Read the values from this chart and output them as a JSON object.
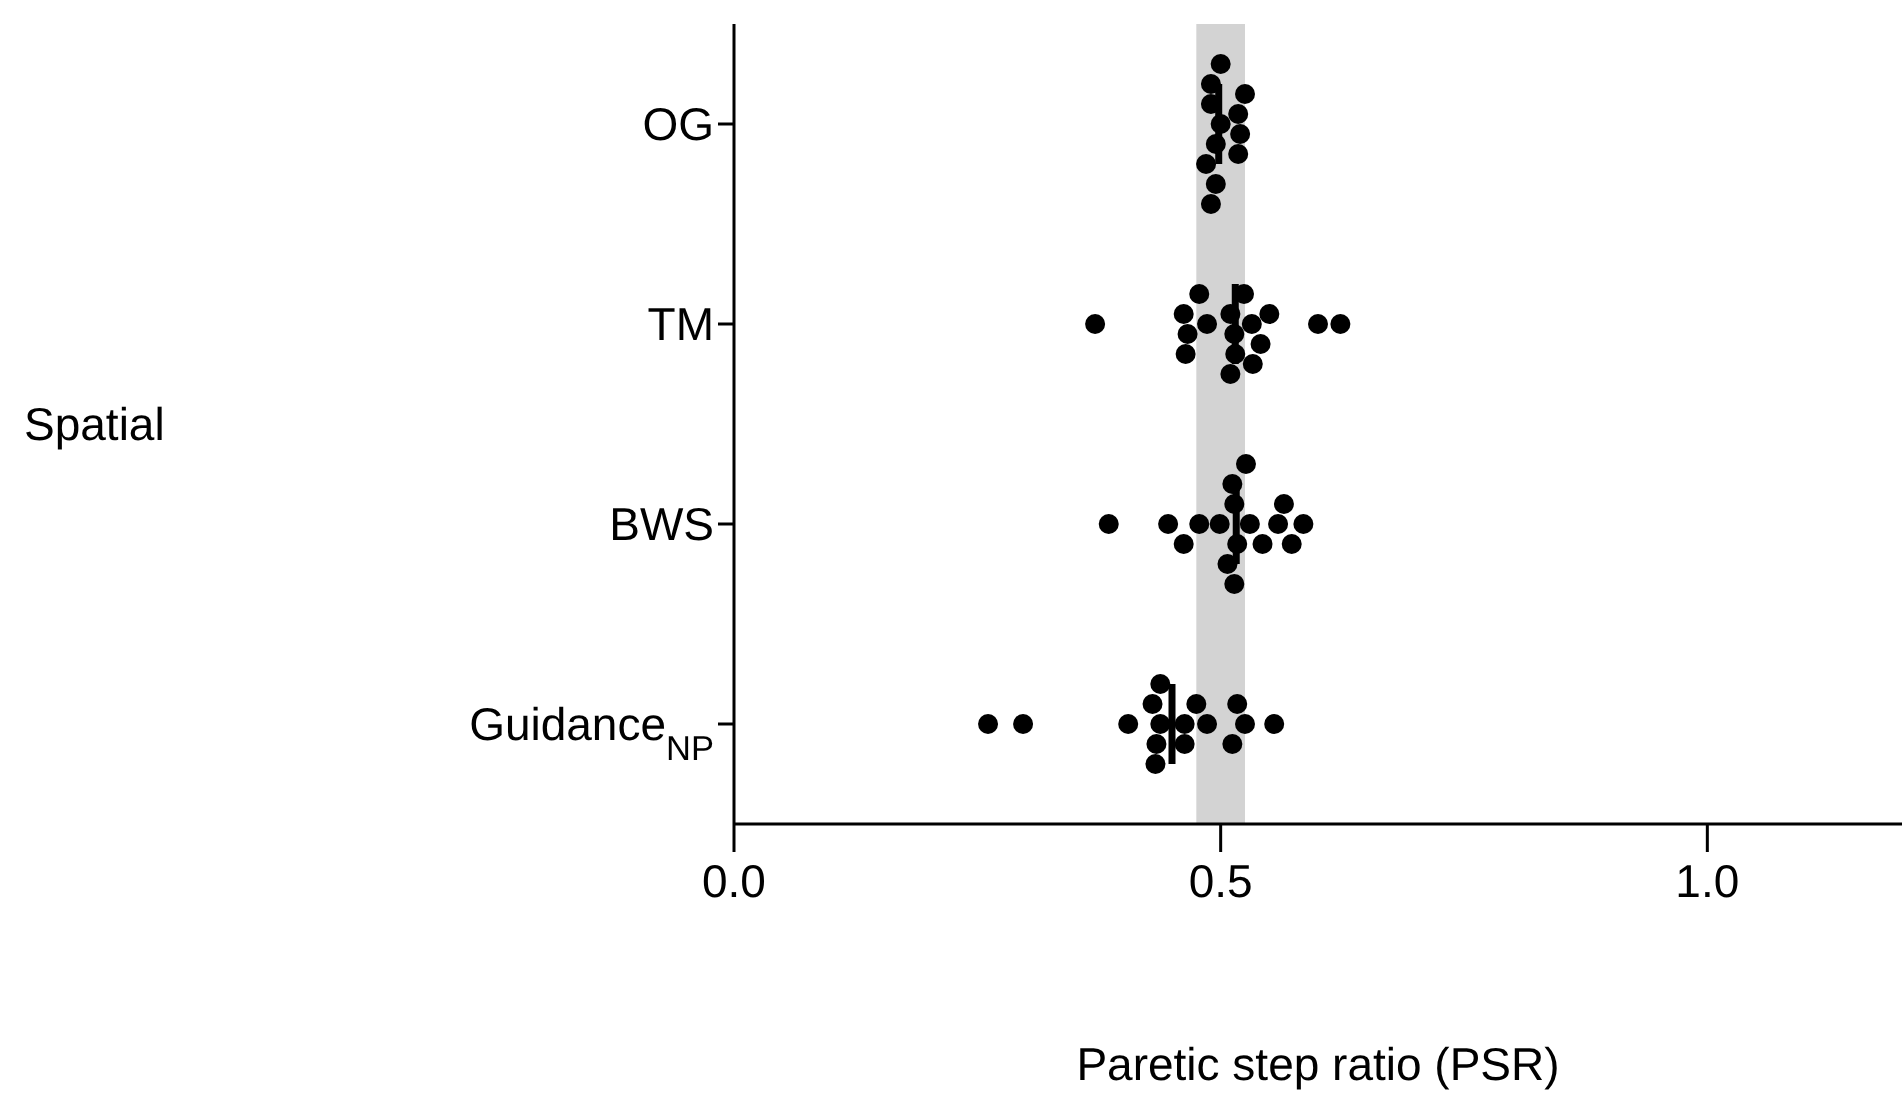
{
  "chart_data": {
    "type": "scatter",
    "orientation": "horizontal",
    "categories": [
      "OG",
      "TM",
      "BWS",
      "Guidance$_{NP}$"
    ],
    "xlabel": "Paretic step ratio (PSR)",
    "annotations": [
      "Spatial"
    ],
    "xlim": [
      0,
      1.2
    ],
    "xticks": [
      {
        "value": 0,
        "label": "0.0"
      },
      {
        "value": 0.5,
        "label": "0.5"
      },
      {
        "value": 1,
        "label": "1.0"
      }
    ],
    "marker": "circle",
    "bands": [
      {
        "axis": "x",
        "from": 0.475,
        "to": 0.525,
        "color": "#d3d3d3"
      }
    ],
    "series": [
      {
        "color": "#000000",
        "x": [
          "OG",
          "OG",
          "OG",
          "OG",
          "OG",
          "OG",
          "OG",
          "OG",
          "OG",
          "OG",
          "OG",
          "OG",
          "TM",
          "TM",
          "TM",
          "TM",
          "TM",
          "TM",
          "TM",
          "TM",
          "TM",
          "TM",
          "TM",
          "TM",
          "TM",
          "TM",
          "TM",
          "TM",
          "TM",
          "BWS",
          "BWS",
          "BWS",
          "BWS",
          "BWS",
          "BWS",
          "BWS",
          "BWS",
          "BWS",
          "BWS",
          "BWS",
          "BWS",
          "BWS",
          "BWS",
          "BWS",
          "BWS",
          "BWS",
          "Guidance$_{NP}$",
          "Guidance$_{NP}$",
          "Guidance$_{NP}$",
          "Guidance$_{NP}$",
          "Guidance$_{NP}$",
          "Guidance$_{NP}$",
          "Guidance$_{NP}$",
          "Guidance$_{NP}$",
          "Guidance$_{NP}$",
          "Guidance$_{NP}$",
          "Guidance$_{NP}$",
          "Guidance$_{NP}$",
          "Guidance$_{NP}$",
          "Guidance$_{NP}$",
          "Guidance$_{NP}$",
          "Guidance$_{NP}$"
        ],
        "values": [
          0.5,
          0.52,
          0.495,
          0.518,
          0.49,
          0.485,
          0.518,
          0.49,
          0.495,
          0.525,
          0.5,
          0.49,
          0.486,
          0.532,
          0.466,
          0.514,
          0.541,
          0.623,
          0.371,
          0.462,
          0.51,
          0.55,
          0.6,
          0.464,
          0.515,
          0.524,
          0.478,
          0.533,
          0.51,
          0.53,
          0.517,
          0.385,
          0.446,
          0.499,
          0.514,
          0.559,
          0.573,
          0.543,
          0.507,
          0.462,
          0.478,
          0.512,
          0.585,
          0.565,
          0.514,
          0.526,
          0.438,
          0.486,
          0.434,
          0.525,
          0.43,
          0.463,
          0.261,
          0.297,
          0.405,
          0.433,
          0.463,
          0.512,
          0.555,
          0.438,
          0.475,
          0.517
        ]
      },
      {
        "type": "box",
        "color": "#000000",
        "x": [
          "OG",
          "TM",
          "BWS",
          "Guidance$_{NP}$"
        ],
        "boxes": [
          {
            "low": 0.498,
            "q1": 0.498,
            "median": 0.498,
            "q3": 0.498,
            "high": 0.498
          },
          {
            "low": 0.515,
            "q1": 0.515,
            "median": 0.515,
            "q3": 0.515,
            "high": 0.515
          },
          {
            "low": 0.516,
            "q1": 0.516,
            "median": 0.516,
            "q3": 0.516,
            "high": 0.516
          },
          {
            "low": 0.45,
            "q1": 0.45,
            "median": 0.45,
            "q3": 0.45,
            "high": 0.45
          }
        ]
      }
    ]
  }
}
